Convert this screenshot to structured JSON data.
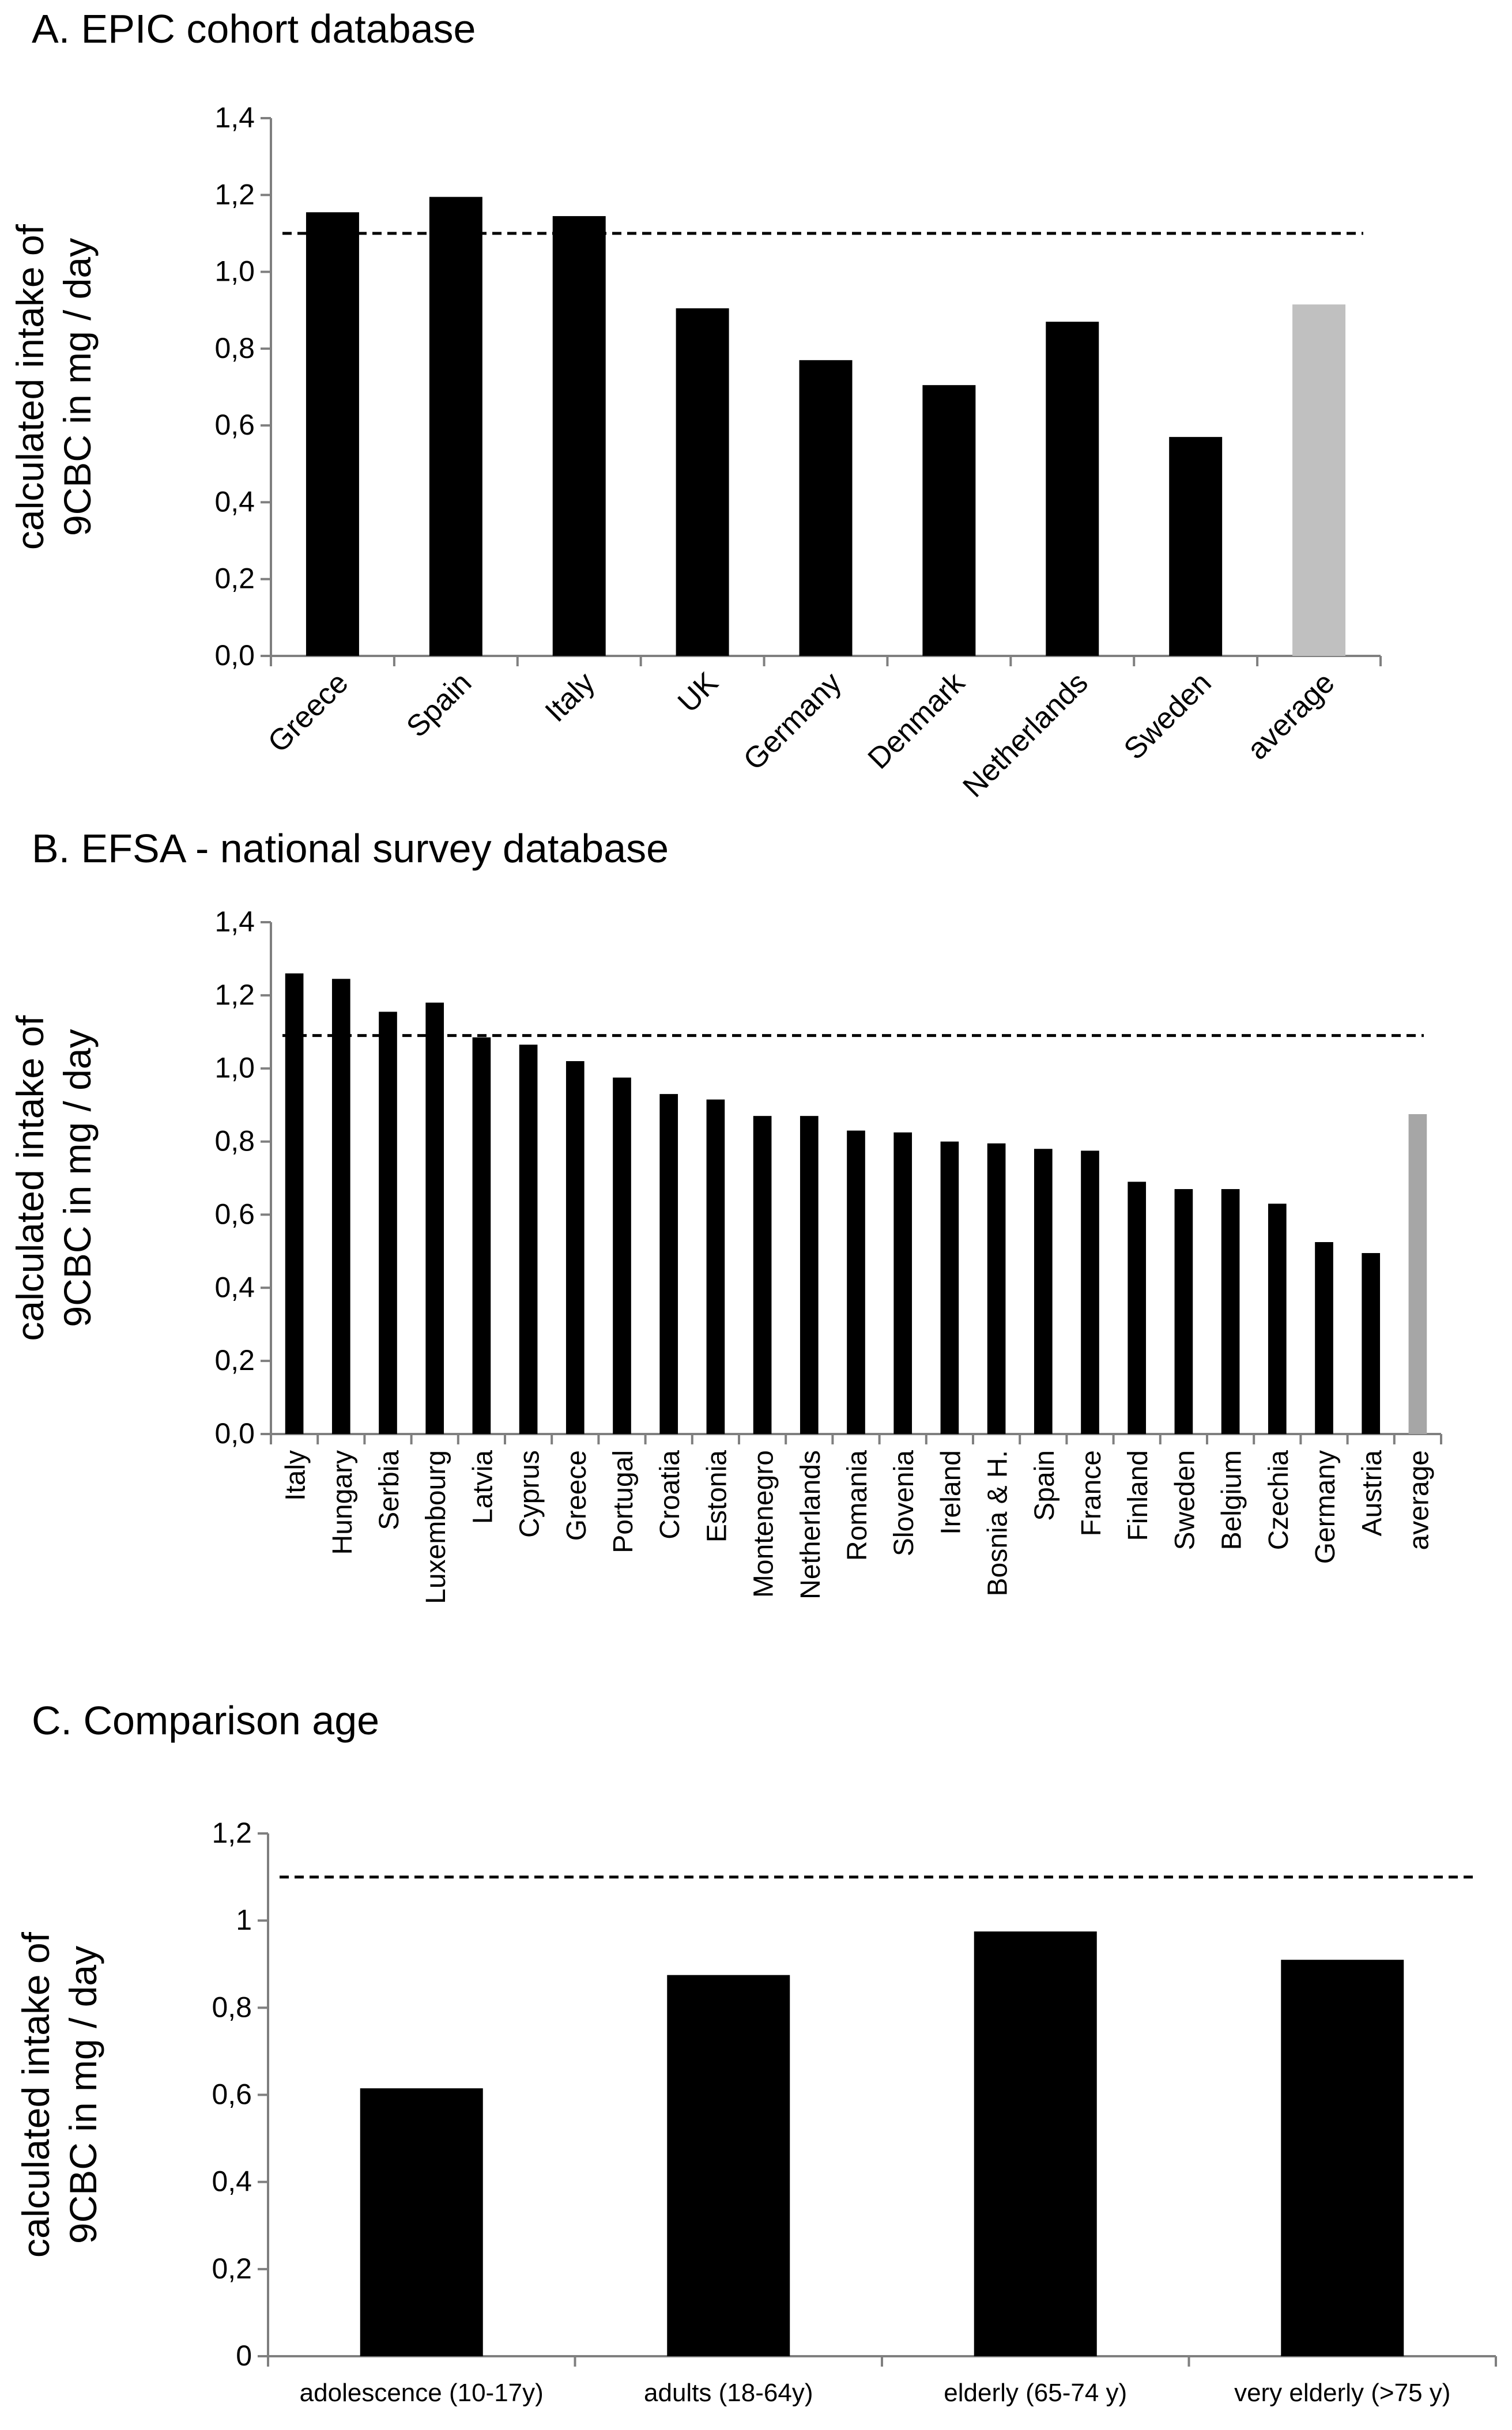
{
  "threshold": 1.1,
  "chart_data": [
    {
      "type": "bar",
      "title": "A. EPIC cohort database",
      "ylabel": "calculated intake of 9CBC in mg / day",
      "ylabel_lines": [
        "calculated intake of",
        "9CBC in mg / day"
      ],
      "xlabel": "",
      "ylim": [
        0,
        1.4
      ],
      "yticks": [
        "0,0",
        "0,2",
        "0,4",
        "0,6",
        "0,8",
        "1,0",
        "1,2",
        "1,4"
      ],
      "categories": [
        "Greece",
        "Spain",
        "Italy",
        "UK",
        "Germany",
        "Denmark",
        "Netherlands",
        "Sweden",
        "average"
      ],
      "values": [
        1.155,
        1.195,
        1.145,
        0.905,
        0.77,
        0.705,
        0.87,
        0.57,
        0.915
      ],
      "reference_line": 1.1,
      "colors": {
        "bar": "#000000",
        "average": "#c0c0c0"
      }
    },
    {
      "type": "bar",
      "title": "B. EFSA - national survey database",
      "ylabel": "calculated intake of 9CBC in mg / day",
      "ylabel_lines": [
        "calculated intake of",
        "9CBC in mg / day"
      ],
      "xlabel": "",
      "ylim": [
        0,
        1.4
      ],
      "yticks": [
        "0,0",
        "0,2",
        "0,4",
        "0,6",
        "0,8",
        "1,0",
        "1,2",
        "1,4"
      ],
      "categories": [
        "Italy",
        "Hungary",
        "Serbia",
        "Luxembourg",
        "Latvia",
        "Cyprus",
        "Greece",
        "Portugal",
        "Croatia",
        "Estonia",
        "Montenegro",
        "Netherlands",
        "Romania",
        "Slovenia",
        "Ireland",
        "Bosnia & H.",
        "Spain",
        "France",
        "Finland",
        "Sweden",
        "Belgium",
        "Czechia",
        "Germany",
        "Austria",
        "average"
      ],
      "values": [
        1.26,
        1.245,
        1.155,
        1.18,
        1.085,
        1.065,
        1.02,
        0.975,
        0.93,
        0.915,
        0.87,
        0.87,
        0.83,
        0.825,
        0.8,
        0.795,
        0.78,
        0.775,
        0.69,
        0.67,
        0.67,
        0.63,
        0.525,
        0.495,
        0.875
      ],
      "reference_line": 1.09,
      "colors": {
        "bar": "#000000",
        "average": "#a6a6a6"
      }
    },
    {
      "type": "bar",
      "title": "C. Comparison age",
      "ylabel": "calculated intake of 9CBC in mg / day",
      "ylabel_lines": [
        "calculated intake of",
        "9CBC in mg / day"
      ],
      "xlabel": "",
      "ylim": [
        0,
        1.2
      ],
      "yticks": [
        "0",
        "0,2",
        "0,4",
        "0,6",
        "0,8",
        "1",
        "1,2"
      ],
      "categories": [
        "adolescence (10-17y)",
        "adults (18-64y)",
        "elderly (65-74 y)",
        "very elderly (>75 y)"
      ],
      "values": [
        0.615,
        0.875,
        0.975,
        0.91
      ],
      "reference_line": 1.1,
      "colors": {
        "bar": "#000000"
      }
    }
  ]
}
